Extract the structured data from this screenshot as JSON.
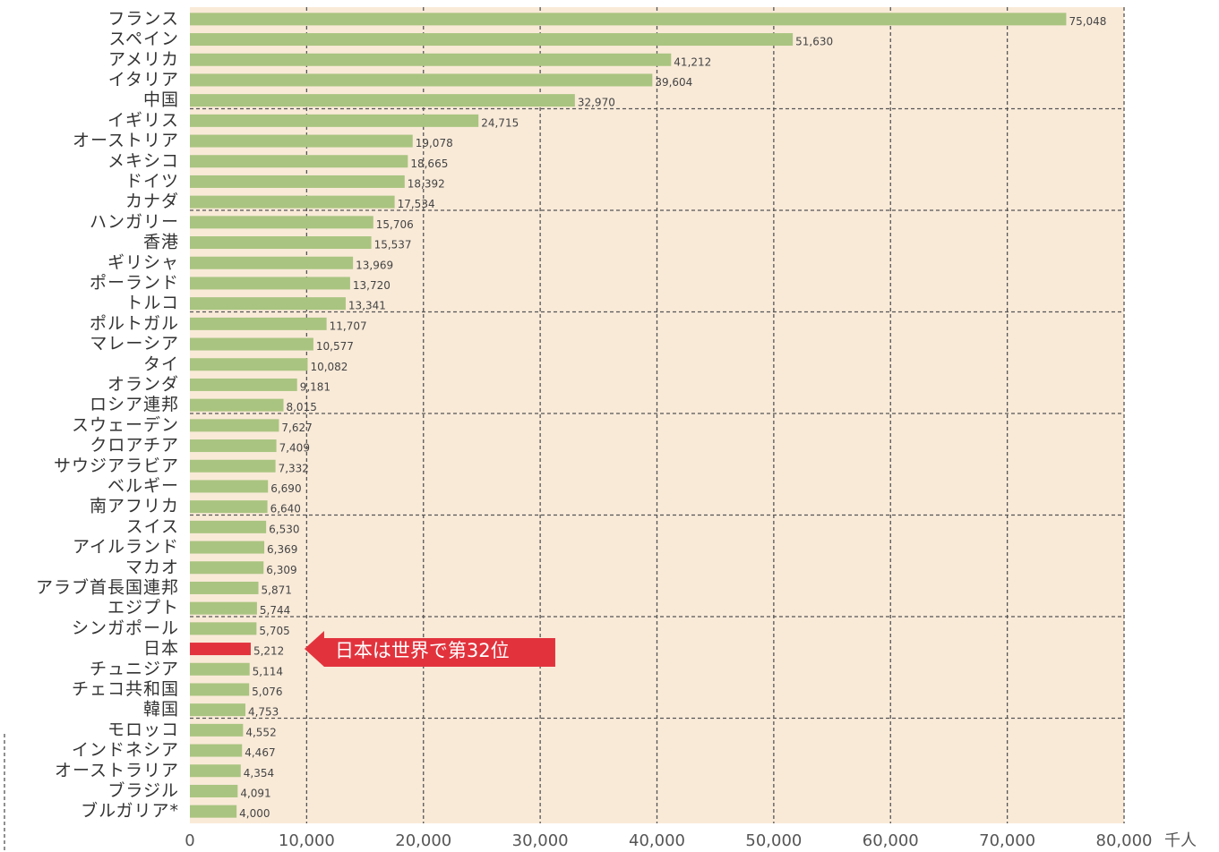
{
  "chart_data": {
    "type": "barh",
    "categories": [
      "フランス",
      "スペイン",
      "アメリカ",
      "イタリア",
      "中国",
      "イギリス",
      "オーストリア",
      "メキシコ",
      "ドイツ",
      "カナダ",
      "ハンガリー",
      "香港",
      "ギリシャ",
      "ポーランド",
      "トルコ",
      "ポルトガル",
      "マレーシア",
      "タイ",
      "オランダ",
      "ロシア連邦",
      "スウェーデン",
      "クロアチア",
      "サウジアラビア",
      "ベルギー",
      "南アフリカ",
      "スイス",
      "アイルランド",
      "マカオ",
      "アラブ首長国連邦",
      "エジプト",
      "シンガポール",
      "日本",
      "チュニジア",
      "チェコ共和国",
      "韓国",
      "モロッコ",
      "インドネシア",
      "オーストラリア",
      "ブラジル",
      "ブルガリア*"
    ],
    "values": [
      75048,
      51630,
      41212,
      39604,
      32970,
      24715,
      19078,
      18665,
      18392,
      17534,
      15706,
      15537,
      13969,
      13720,
      13341,
      11707,
      10577,
      10082,
      9181,
      8015,
      7627,
      7409,
      7332,
      6690,
      6640,
      6530,
      6369,
      6309,
      5871,
      5744,
      5705,
      5212,
      5114,
      5076,
      4753,
      4552,
      4467,
      4354,
      4091,
      4000
    ],
    "value_labels": [
      "75,048",
      "51,630",
      "41,212",
      "39,604",
      "32,970",
      "24,715",
      "19,078",
      "18,665",
      "18,392",
      "17,534",
      "15,706",
      "15,537",
      "13,969",
      "13,720",
      "13,341",
      "11,707",
      "10,577",
      "10,082",
      "9,181",
      "8,015",
      "7,627",
      "7,409",
      "7,332",
      "6,690",
      "6,640",
      "6,530",
      "6,369",
      "6,309",
      "5,871",
      "5,744",
      "5,705",
      "5,212",
      "5,114",
      "5,076",
      "4,753",
      "4,552",
      "4,467",
      "4,354",
      "4,091",
      "4,000"
    ],
    "color": "#a9c480",
    "xlim": [
      0,
      80000
    ],
    "xticks": [
      0,
      {
        "value": 10000,
        "label": "10,000"
      },
      {
        "value": 20000,
        "label": "20,000"
      },
      {
        "value": 30000,
        "label": "30,000"
      },
      {
        "value": 40000,
        "label": "40,000"
      },
      {
        "value": 50000,
        "label": "50,000"
      },
      {
        "value": 60000,
        "label": "60,000"
      },
      {
        "value": 70000,
        "label": "70,000"
      },
      {
        "value": 80000,
        "label": "80,000"
      }
    ],
    "x_label": "千人",
    "grid": true,
    "annotation": {
      "text": "日本は世界で第32位",
      "category_index": 31,
      "color": "#e2333d"
    }
  }
}
